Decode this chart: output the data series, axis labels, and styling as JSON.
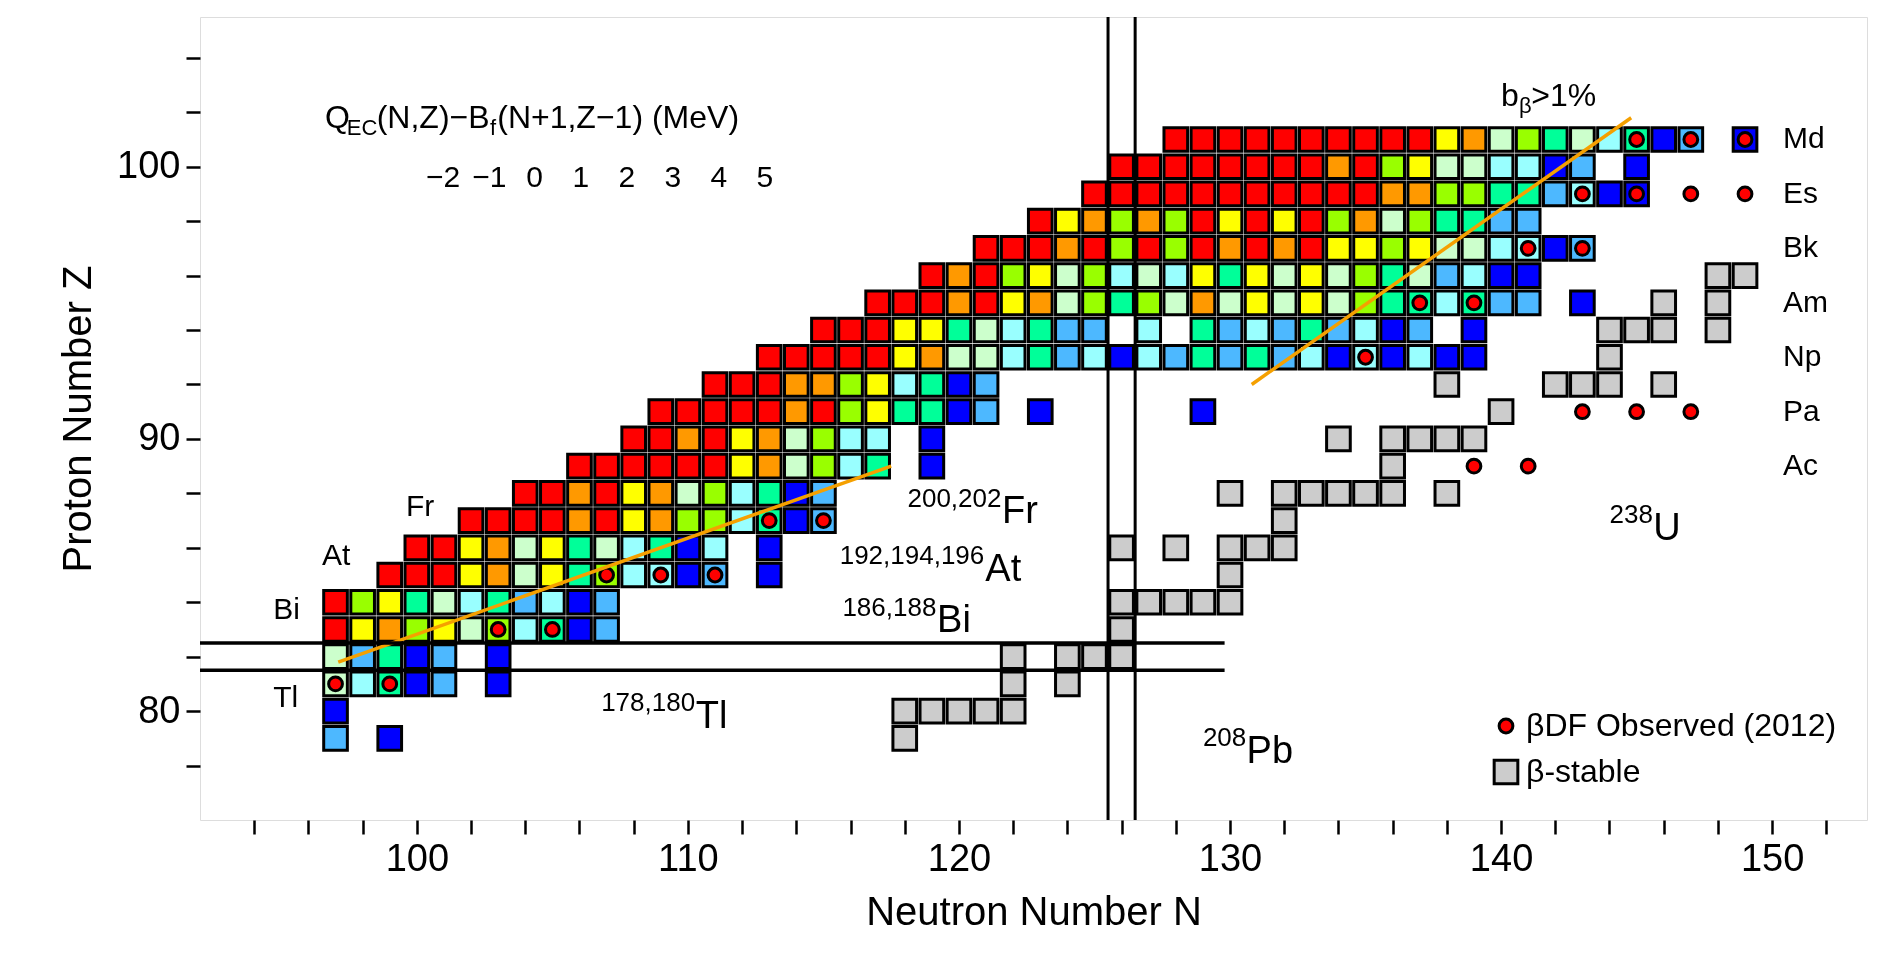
{
  "chart_data": {
    "type": "scatter",
    "xlabel": "Neutron Number N",
    "ylabel": "Proton Number Z",
    "clabel": "Q$_{EC}$(N,Z)−B$_{f}$(N+1,Z−1) (MeV)",
    "xlim": [
      92,
      153.5
    ],
    "ylim": [
      76,
      105.5
    ],
    "xticks": [
      {
        "value": 94,
        "label": null
      },
      {
        "value": 96,
        "label": null
      },
      {
        "value": 98,
        "label": null
      },
      100,
      {
        "value": 102,
        "label": null
      },
      {
        "value": 104,
        "label": null
      },
      {
        "value": 106,
        "label": null
      },
      {
        "value": 108,
        "label": null
      },
      110,
      {
        "value": 112,
        "label": null
      },
      {
        "value": 114,
        "label": null
      },
      {
        "value": 116,
        "label": null
      },
      {
        "value": 118,
        "label": null
      },
      120,
      {
        "value": 122,
        "label": null
      },
      {
        "value": 124,
        "label": null
      },
      {
        "value": 126,
        "label": null
      },
      {
        "value": 128,
        "label": null
      },
      130,
      {
        "value": 132,
        "label": null
      },
      {
        "value": 134,
        "label": null
      },
      {
        "value": 136,
        "label": null
      },
      {
        "value": 138,
        "label": null
      },
      140,
      {
        "value": 142,
        "label": null
      },
      {
        "value": 144,
        "label": null
      },
      {
        "value": 146,
        "label": null
      },
      {
        "value": 148,
        "label": null
      },
      150,
      {
        "value": 152,
        "label": null
      }
    ],
    "yticks": [
      {
        "value": 78,
        "label": null
      },
      80,
      {
        "value": 82,
        "label": null
      },
      {
        "value": 84,
        "label": null
      },
      {
        "value": 86,
        "label": null
      },
      {
        "value": 88,
        "label": null
      },
      90,
      {
        "value": 92,
        "label": null
      },
      {
        "value": 94,
        "label": null
      },
      {
        "value": 96,
        "label": null
      },
      {
        "value": 98,
        "label": null
      },
      100,
      {
        "value": 102,
        "label": null
      },
      {
        "value": 104,
        "label": null
      }
    ],
    "legend": "bottom right",
    "series": [
      {
        "marker": "square",
        "x": [
          97,
          99
        ],
        "values": [
          79,
          79
        ],
        "colors": [
          "#4db8ff",
          "#0000ff"
        ]
      },
      {
        "marker": "square",
        "x": [
          97
        ],
        "values": [
          80
        ],
        "colors": [
          "#0000ff"
        ]
      },
      {
        "marker": "square",
        "x": [
          97,
          98,
          99,
          100,
          101,
          103
        ],
        "values": [
          81,
          81,
          81,
          81,
          81,
          81
        ],
        "colors": [
          "#ccffcc",
          "#99ffff",
          "#00ff99",
          "#0000ff",
          "#4db8ff",
          "#0000ff"
        ]
      },
      {
        "marker": "square",
        "x": [
          97,
          98,
          99,
          100,
          101,
          103
        ],
        "values": [
          82,
          82,
          82,
          82,
          82,
          82
        ],
        "colors": [
          "#ccffcc",
          "#4db8ff",
          "#00ff99",
          "#0000ff",
          "#4db8ff",
          "#0000ff"
        ]
      },
      {
        "marker": "square",
        "x": [
          97,
          98,
          99,
          100,
          101,
          102,
          103,
          104,
          105,
          106,
          107
        ],
        "values": [
          83,
          83,
          83,
          83,
          83,
          83,
          83,
          83,
          83,
          83,
          83
        ],
        "colors": [
          "#ff0000",
          "#ffff00",
          "#ff9900",
          "#99ff00",
          "#ffff00",
          "#ccffcc",
          "#99ff00",
          "#99ffff",
          "#00ff99",
          "#0000ff",
          "#4db8ff"
        ]
      },
      {
        "marker": "square",
        "x": [
          97,
          98,
          99,
          100,
          101,
          102,
          103,
          104,
          105,
          106,
          107
        ],
        "values": [
          84,
          84,
          84,
          84,
          84,
          84,
          84,
          84,
          84,
          84,
          84
        ],
        "colors": [
          "#ff0000",
          "#99ff00",
          "#ffff00",
          "#00ff99",
          "#ccffcc",
          "#99ffff",
          "#00ff99",
          "#4db8ff",
          "#99ffff",
          "#0000ff",
          "#4db8ff"
        ]
      },
      {
        "marker": "square",
        "x": [
          99,
          100,
          101,
          102,
          103,
          104,
          105,
          106,
          107,
          108,
          109,
          110,
          111,
          113
        ],
        "values": [
          85,
          85,
          85,
          85,
          85,
          85,
          85,
          85,
          85,
          85,
          85,
          85,
          85,
          85
        ],
        "colors": [
          "#ff0000",
          "#ff0000",
          "#ff0000",
          "#ffff00",
          "#ff9900",
          "#ccffcc",
          "#ffff00",
          "#00ff99",
          "#99ff00",
          "#99ffff",
          "#99ffff",
          "#0000ff",
          "#4db8ff",
          "#0000ff"
        ]
      },
      {
        "marker": "square",
        "x": [
          100,
          101,
          102,
          103,
          104,
          105,
          106,
          107,
          108,
          109,
          110,
          111,
          113
        ],
        "values": [
          86,
          86,
          86,
          86,
          86,
          86,
          86,
          86,
          86,
          86,
          86,
          86,
          86
        ],
        "colors": [
          "#ff0000",
          "#ff0000",
          "#ffff00",
          "#ff9900",
          "#ccffcc",
          "#ffff00",
          "#00ff99",
          "#ccffcc",
          "#99ffff",
          "#00ff99",
          "#0000ff",
          "#99ffff",
          "#0000ff"
        ]
      },
      {
        "marker": "square",
        "x": [
          102,
          103,
          104,
          105,
          106,
          107,
          108,
          109,
          110,
          111,
          112,
          113,
          114,
          115
        ],
        "values": [
          87,
          87,
          87,
          87,
          87,
          87,
          87,
          87,
          87,
          87,
          87,
          87,
          87,
          87
        ],
        "colors": [
          "#ff0000",
          "#ff0000",
          "#ff0000",
          "#ff0000",
          "#ff9900",
          "#ff0000",
          "#ffff00",
          "#ff9900",
          "#99ff00",
          "#99ff00",
          "#99ffff",
          "#00ff99",
          "#0000ff",
          "#4db8ff"
        ]
      },
      {
        "marker": "square",
        "x": [
          104,
          105,
          106,
          107,
          108,
          109,
          110,
          111,
          112,
          113,
          114,
          115
        ],
        "values": [
          88,
          88,
          88,
          88,
          88,
          88,
          88,
          88,
          88,
          88,
          88,
          88
        ],
        "colors": [
          "#ff0000",
          "#ff0000",
          "#ff9900",
          "#ff0000",
          "#ffff00",
          "#ff9900",
          "#ccffcc",
          "#99ff00",
          "#99ffff",
          "#00ff99",
          "#0000ff",
          "#4db8ff"
        ]
      },
      {
        "marker": "square",
        "x": [
          106,
          107,
          108,
          109,
          110,
          111,
          112,
          113,
          114,
          115,
          116,
          117,
          119
        ],
        "values": [
          89,
          89,
          89,
          89,
          89,
          89,
          89,
          89,
          89,
          89,
          89,
          89,
          89
        ],
        "colors": [
          "#ff0000",
          "#ff0000",
          "#ff0000",
          "#ff0000",
          "#ff0000",
          "#ff0000",
          "#ffff00",
          "#ff9900",
          "#ccffcc",
          "#99ff00",
          "#99ffff",
          "#00ff99",
          "#0000ff"
        ]
      },
      {
        "marker": "square",
        "x": [
          108,
          109,
          110,
          111,
          112,
          113,
          114,
          115,
          116,
          117,
          119
        ],
        "values": [
          90,
          90,
          90,
          90,
          90,
          90,
          90,
          90,
          90,
          90,
          90
        ],
        "colors": [
          "#ff0000",
          "#ff0000",
          "#ff9900",
          "#ff0000",
          "#ffff00",
          "#ff9900",
          "#ccffcc",
          "#99ff00",
          "#99ffff",
          "#99ffff",
          "#0000ff"
        ]
      },
      {
        "marker": "square",
        "x": [
          109,
          110,
          111,
          112,
          113,
          114,
          115,
          116,
          117,
          118,
          119,
          120,
          121,
          123,
          129
        ],
        "values": [
          91,
          91,
          91,
          91,
          91,
          91,
          91,
          91,
          91,
          91,
          91,
          91,
          91,
          91,
          91
        ],
        "colors": [
          "#ff0000",
          "#ff0000",
          "#ff0000",
          "#ff0000",
          "#ff0000",
          "#ff9900",
          "#ff0000",
          "#99ff00",
          "#ffff00",
          "#00ff99",
          "#00ff99",
          "#0000ff",
          "#4db8ff",
          "#0000ff",
          "#0000ff"
        ]
      },
      {
        "marker": "square",
        "x": [
          111,
          112,
          113,
          114,
          115,
          116,
          117,
          118,
          119,
          120,
          121
        ],
        "values": [
          92,
          92,
          92,
          92,
          92,
          92,
          92,
          92,
          92,
          92,
          92
        ],
        "colors": [
          "#ff0000",
          "#ff0000",
          "#ff0000",
          "#ff9900",
          "#ff9900",
          "#99ff00",
          "#ffff00",
          "#99ffff",
          "#00ff99",
          "#0000ff",
          "#4db8ff"
        ]
      },
      {
        "marker": "square",
        "x": [
          113,
          114,
          115,
          116,
          117,
          118,
          119,
          120,
          121,
          122,
          123,
          124,
          125,
          126,
          127,
          128,
          129,
          130,
          131,
          132,
          133,
          134,
          135,
          136,
          137,
          138,
          139
        ],
        "values": [
          93,
          93,
          93,
          93,
          93,
          93,
          93,
          93,
          93,
          93,
          93,
          93,
          93,
          93,
          93,
          93,
          93,
          93,
          93,
          93,
          93,
          93,
          93,
          93,
          93,
          93,
          93
        ],
        "colors": [
          "#ff0000",
          "#ff0000",
          "#ff0000",
          "#ff0000",
          "#ff0000",
          "#ffff00",
          "#ff9900",
          "#ccffcc",
          "#ccffcc",
          "#99ffff",
          "#00ff99",
          "#4db8ff",
          "#99ffff",
          "#0000ff",
          "#99ffff",
          "#4db8ff",
          "#00ff99",
          "#4db8ff",
          "#00ff99",
          "#4db8ff",
          "#99ffff",
          "#0000ff",
          "#99ffff",
          "#0000ff",
          "#99ffff",
          "#0000ff",
          "#0000ff"
        ]
      },
      {
        "marker": "square",
        "x": [
          115,
          116,
          117,
          118,
          119,
          120,
          121,
          122,
          123,
          124,
          125,
          127,
          129,
          130,
          131,
          132,
          133,
          134,
          135,
          136,
          137,
          139
        ],
        "values": [
          94,
          94,
          94,
          94,
          94,
          94,
          94,
          94,
          94,
          94,
          94,
          94,
          94,
          94,
          94,
          94,
          94,
          94,
          94,
          94,
          94,
          94
        ],
        "colors": [
          "#ff0000",
          "#ff0000",
          "#ff0000",
          "#ffff00",
          "#ffff00",
          "#00ff99",
          "#ccffcc",
          "#99ffff",
          "#00ff99",
          "#4db8ff",
          "#4db8ff",
          "#99ffff",
          "#00ff99",
          "#4db8ff",
          "#99ffff",
          "#4db8ff",
          "#00ff99",
          "#4db8ff",
          "#99ffff",
          "#0000ff",
          "#4db8ff",
          "#0000ff"
        ]
      },
      {
        "marker": "square",
        "x": [
          117,
          118,
          119,
          120,
          121,
          122,
          123,
          124,
          125,
          126,
          127,
          128,
          129,
          130,
          131,
          132,
          133,
          134,
          135,
          136,
          137,
          138,
          139,
          140,
          141,
          143
        ],
        "values": [
          95,
          95,
          95,
          95,
          95,
          95,
          95,
          95,
          95,
          95,
          95,
          95,
          95,
          95,
          95,
          95,
          95,
          95,
          95,
          95,
          95,
          95,
          95,
          95,
          95,
          95
        ],
        "colors": [
          "#ff0000",
          "#ff0000",
          "#ff0000",
          "#ff9900",
          "#ff0000",
          "#ffff00",
          "#ff9900",
          "#ccffcc",
          "#99ff00",
          "#00ff99",
          "#99ff00",
          "#ccffcc",
          "#ff9900",
          "#ccffcc",
          "#ffff00",
          "#ccffcc",
          "#ffff00",
          "#ccffcc",
          "#99ff00",
          "#00ff99",
          "#00ff99",
          "#99ffff",
          "#00ff99",
          "#4db8ff",
          "#4db8ff",
          "#0000ff"
        ]
      },
      {
        "marker": "square",
        "x": [
          119,
          120,
          121,
          122,
          123,
          124,
          125,
          126,
          127,
          128,
          129,
          130,
          131,
          132,
          133,
          134,
          135,
          136,
          137,
          138,
          139,
          140,
          141
        ],
        "values": [
          96,
          96,
          96,
          96,
          96,
          96,
          96,
          96,
          96,
          96,
          96,
          96,
          96,
          96,
          96,
          96,
          96,
          96,
          96,
          96,
          96,
          96,
          96
        ],
        "colors": [
          "#ff0000",
          "#ff9900",
          "#ff0000",
          "#99ff00",
          "#ffff00",
          "#ccffcc",
          "#99ff00",
          "#99ffff",
          "#ccffcc",
          "#99ffff",
          "#ffff00",
          "#00ff99",
          "#ffff00",
          "#ccffcc",
          "#ffff00",
          "#ccffcc",
          "#99ff00",
          "#00ff99",
          "#ccffcc",
          "#4db8ff",
          "#99ffff",
          "#0000ff",
          "#0000ff"
        ]
      },
      {
        "marker": "square",
        "x": [
          121,
          122,
          123,
          124,
          125,
          126,
          127,
          128,
          129,
          130,
          131,
          132,
          133,
          134,
          135,
          136,
          137,
          138,
          139,
          140,
          141,
          142,
          143
        ],
        "values": [
          97,
          97,
          97,
          97,
          97,
          97,
          97,
          97,
          97,
          97,
          97,
          97,
          97,
          97,
          97,
          97,
          97,
          97,
          97,
          97,
          97,
          97,
          97
        ],
        "colors": [
          "#ff0000",
          "#ff0000",
          "#ff0000",
          "#ff9900",
          "#ff0000",
          "#99ff00",
          "#ff0000",
          "#99ff00",
          "#ff0000",
          "#ff9900",
          "#ff0000",
          "#ff9900",
          "#ff0000",
          "#ffff00",
          "#ffff00",
          "#99ff00",
          "#ffff00",
          "#ccffcc",
          "#ccffcc",
          "#99ffff",
          "#99ffff",
          "#0000ff",
          "#4db8ff"
        ]
      },
      {
        "marker": "square",
        "x": [
          123,
          124,
          125,
          126,
          127,
          128,
          129,
          130,
          131,
          132,
          133,
          134,
          135,
          136,
          137,
          138,
          139,
          140,
          141
        ],
        "values": [
          98,
          98,
          98,
          98,
          98,
          98,
          98,
          98,
          98,
          98,
          98,
          98,
          98,
          98,
          98,
          98,
          98,
          98,
          98
        ],
        "colors": [
          "#ff0000",
          "#ffff00",
          "#ff9900",
          "#99ff00",
          "#ff9900",
          "#99ff00",
          "#ff0000",
          "#ffff00",
          "#ff0000",
          "#ffff00",
          "#ff0000",
          "#99ff00",
          "#ff9900",
          "#ccffcc",
          "#99ff00",
          "#00ff99",
          "#00ff99",
          "#4db8ff",
          "#4db8ff"
        ]
      },
      {
        "marker": "square",
        "x": [
          125,
          126,
          127,
          128,
          129,
          130,
          131,
          132,
          133,
          134,
          135,
          136,
          137,
          138,
          139,
          140,
          141,
          142,
          143,
          144,
          145
        ],
        "values": [
          99,
          99,
          99,
          99,
          99,
          99,
          99,
          99,
          99,
          99,
          99,
          99,
          99,
          99,
          99,
          99,
          99,
          99,
          99,
          99,
          99
        ],
        "colors": [
          "#ff0000",
          "#ff0000",
          "#ff0000",
          "#ff0000",
          "#ff0000",
          "#ff0000",
          "#ff0000",
          "#ff0000",
          "#ff0000",
          "#ff0000",
          "#ff0000",
          "#ff9900",
          "#ff9900",
          "#99ff00",
          "#99ff00",
          "#00ff99",
          "#00ff99",
          "#4db8ff",
          "#99ffff",
          "#0000ff",
          "#0000ff"
        ]
      },
      {
        "marker": "square",
        "x": [
          126,
          127,
          128,
          129,
          130,
          131,
          132,
          133,
          134,
          135,
          136,
          137,
          138,
          139,
          140,
          141,
          142,
          143,
          145
        ],
        "values": [
          100,
          100,
          100,
          100,
          100,
          100,
          100,
          100,
          100,
          100,
          100,
          100,
          100,
          100,
          100,
          100,
          100,
          100,
          100
        ],
        "colors": [
          "#ff0000",
          "#ff0000",
          "#ff0000",
          "#ff0000",
          "#ff0000",
          "#ff0000",
          "#ff0000",
          "#ff0000",
          "#ff9900",
          "#ff0000",
          "#99ff00",
          "#ffff00",
          "#ccffcc",
          "#ccffcc",
          "#99ffff",
          "#99ffff",
          "#0000ff",
          "#4db8ff",
          "#0000ff"
        ]
      },
      {
        "marker": "square",
        "x": [
          128,
          129,
          130,
          131,
          132,
          133,
          134,
          135,
          136,
          137,
          138,
          139,
          140,
          141,
          142,
          143,
          144,
          145,
          146,
          147,
          149
        ],
        "values": [
          101,
          101,
          101,
          101,
          101,
          101,
          101,
          101,
          101,
          101,
          101,
          101,
          101,
          101,
          101,
          101,
          101,
          101,
          101,
          101,
          101
        ],
        "colors": [
          "#ff0000",
          "#ff0000",
          "#ff0000",
          "#ff0000",
          "#ff0000",
          "#ff0000",
          "#ff0000",
          "#ff0000",
          "#ff0000",
          "#ff0000",
          "#ffff00",
          "#ff9900",
          "#ccffcc",
          "#99ff00",
          "#00ff99",
          "#ccffcc",
          "#99ffff",
          "#00ff99",
          "#0000ff",
          "#4db8ff",
          "#0000ff"
        ]
      },
      {
        "name": "βDF Observed (2012)",
        "color": "#ff0000",
        "marker": "circle",
        "x": [
          97,
          99,
          103,
          105,
          107,
          109,
          111,
          113,
          115,
          139,
          141,
          143,
          145,
          147,
          135,
          137,
          139,
          141,
          143,
          143,
          145,
          147,
          149,
          145,
          147,
          149
        ],
        "values": [
          81,
          81,
          83,
          83,
          85,
          85,
          85,
          87,
          87,
          89,
          89,
          91,
          91,
          91,
          93,
          95,
          95,
          97,
          97,
          99,
          99,
          99,
          99,
          101,
          101,
          101
        ]
      },
      {
        "name": "β-stable",
        "color": "#cccccc",
        "marker": "square",
        "x": [
          118,
          118,
          119,
          120,
          121,
          122,
          122,
          124,
          122,
          124,
          125,
          126,
          126,
          126,
          127,
          128,
          129,
          130,
          130,
          126,
          128,
          130,
          131,
          132,
          132,
          130,
          132,
          133,
          134,
          135,
          136,
          138,
          136,
          134,
          136,
          137,
          138,
          139,
          140,
          138,
          142,
          143,
          144,
          146,
          144,
          144,
          145,
          146,
          148,
          146,
          148,
          148,
          149
        ],
        "values": [
          79,
          80,
          80,
          80,
          80,
          80,
          81,
          81,
          82,
          82,
          82,
          82,
          83,
          84,
          84,
          84,
          84,
          84,
          85,
          86,
          86,
          86,
          86,
          86,
          87,
          88,
          88,
          88,
          88,
          88,
          88,
          88,
          89,
          90,
          90,
          90,
          90,
          90,
          91,
          92,
          92,
          92,
          92,
          92,
          93,
          94,
          94,
          94,
          94,
          95,
          95,
          96,
          96
        ]
      },
      {
        "type": "line",
        "color": "#f5a000",
        "x": [
          97.1,
          117.5
        ],
        "values": [
          81.8,
          89.0
        ]
      },
      {
        "type": "line",
        "color": "#f5a000",
        "x": [
          130.8,
          144.8
        ],
        "values": [
          92.0,
          101.8
        ]
      },
      {
        "type": "line",
        "color": "#000000",
        "x": [
          92,
          129.8
        ],
        "values": [
          82.5,
          82.5
        ]
      },
      {
        "type": "line",
        "color": "#000000",
        "x": [
          92,
          129.8
        ],
        "values": [
          81.5,
          81.5
        ]
      }
    ],
    "ref_lines": [
      {
        "axis": "x",
        "value": 125.5,
        "color": "#000000"
      },
      {
        "axis": "x",
        "value": 126.5,
        "color": "#000000"
      }
    ],
    "annotations": [
      "Tl",
      "Bi",
      "At",
      "Fr",
      "$^{178,180}$Tl",
      "$^{186,188}$Bi",
      "$^{192,194,196}$At",
      "$^{200,202}$Fr",
      "$^{208}$Pb",
      "$^{238}$U",
      "b$_{β}$>1%",
      "Md",
      "Es",
      "Bk",
      "Am",
      "Np",
      "Pa",
      "Ac",
      "−2",
      "−1",
      "0",
      "1",
      "2",
      "3",
      "4",
      "5"
    ]
  }
}
